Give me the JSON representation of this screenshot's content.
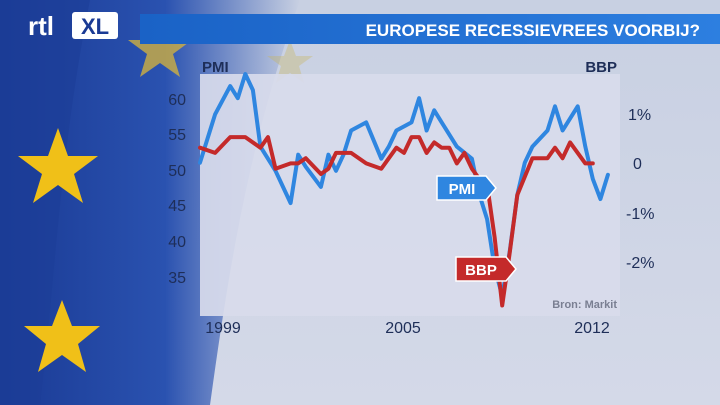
{
  "branding": {
    "logo_text": "rtl XL"
  },
  "header": {
    "title": "EUROPESE RECESSIEVREES VOORBIJ?"
  },
  "colors": {
    "flag_blue": "#1c3f9a",
    "star_yellow": "#f2c21a",
    "banner_blue": "#1e6fd0",
    "pmi_blue": "#2f86e0",
    "bbp_red": "#c42a2a",
    "plot_bg": "#d9dcec"
  },
  "chart_data": {
    "type": "line",
    "title": "EUROPESE RECESSIEVREES VOORBIJ?",
    "left_axis": {
      "label": "PMI",
      "ticks": [
        "60",
        "55",
        "50",
        "45",
        "40",
        "35"
      ],
      "ylim": [
        32,
        62
      ]
    },
    "right_axis": {
      "label": "BBP",
      "ticks": [
        "1%",
        "0",
        "-1%",
        "-2%"
      ],
      "ylim": [
        -2.8,
        1.8
      ]
    },
    "x_ticks": [
      "1999",
      "2005",
      "2012"
    ],
    "xlim": [
      1999,
      2012.9
    ],
    "source": "Bron: Markit",
    "grid": false,
    "series": [
      {
        "name": "PMI",
        "axis": "left",
        "color": "#2f86e0",
        "x": [
          1999.0,
          1999.5,
          2000.0,
          2000.25,
          2000.5,
          2000.75,
          2001.0,
          2001.5,
          2002.0,
          2002.25,
          2002.5,
          2003.0,
          2003.25,
          2003.5,
          2003.75,
          2004.0,
          2004.5,
          2005.0,
          2005.25,
          2005.5,
          2006.0,
          2006.25,
          2006.5,
          2006.75,
          2007.0,
          2007.5,
          2008.0,
          2008.25,
          2008.5,
          2008.75,
          2009.0,
          2009.25,
          2009.5,
          2009.75,
          2010.0,
          2010.5,
          2010.75,
          2011.0,
          2011.5,
          2011.75,
          2012.0,
          2012.25,
          2012.5
        ],
        "values": [
          51,
          57,
          60.5,
          59,
          62,
          60,
          53,
          50,
          46,
          52,
          50.5,
          48,
          52,
          50,
          52,
          55,
          56,
          51.5,
          53,
          55,
          56,
          59,
          55,
          57.5,
          56,
          53,
          51.5,
          47,
          44,
          38,
          34.5,
          40,
          47,
          51,
          53,
          55,
          58,
          55,
          58,
          53,
          49,
          46.5,
          49.5
        ]
      },
      {
        "name": "BBP",
        "axis": "right",
        "color": "#c42a2a",
        "x": [
          1999.0,
          1999.5,
          2000.0,
          2000.5,
          2001.0,
          2001.25,
          2001.5,
          2002.0,
          2002.25,
          2002.5,
          2003.0,
          2003.25,
          2003.5,
          2004.0,
          2004.5,
          2005.0,
          2005.5,
          2005.75,
          2006.0,
          2006.25,
          2006.5,
          2006.75,
          2007.0,
          2007.25,
          2007.5,
          2007.75,
          2008.0,
          2008.25,
          2008.5,
          2008.75,
          2009.0,
          2009.25,
          2009.5,
          2010.0,
          2010.5,
          2010.75,
          2011.0,
          2011.25,
          2011.5,
          2011.75,
          2012.0
        ],
        "values": [
          0.4,
          0.3,
          0.6,
          0.6,
          0.4,
          0.6,
          0.0,
          0.1,
          0.1,
          0.2,
          -0.1,
          0.0,
          0.3,
          0.3,
          0.1,
          0.0,
          0.4,
          0.3,
          0.6,
          0.6,
          0.3,
          0.5,
          0.4,
          0.4,
          0.1,
          0.3,
          0.0,
          -0.2,
          -0.3,
          -1.3,
          -2.6,
          -1.6,
          -0.5,
          0.2,
          0.2,
          0.4,
          0.2,
          0.5,
          0.3,
          0.1,
          0.1
        ]
      }
    ]
  }
}
